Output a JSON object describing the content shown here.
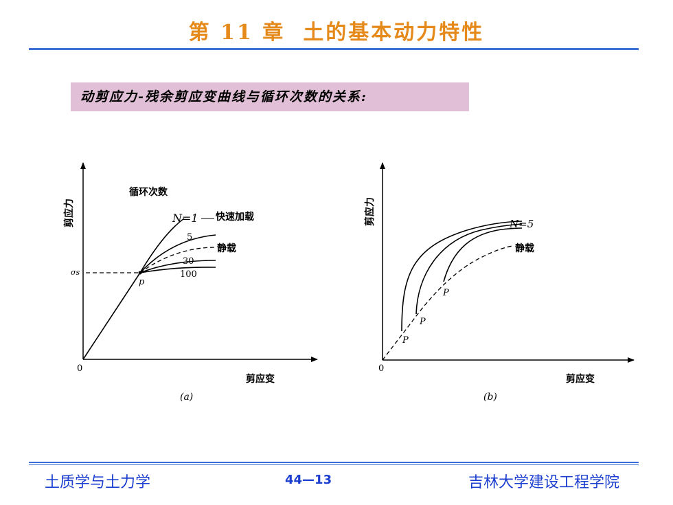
{
  "header": {
    "chapter": "第 11 章",
    "title": "土的基本动力特性"
  },
  "subtitle": "动剪应力-残余剪应变曲线与循环次数的关系:",
  "figure_a": {
    "y_axis_label": "剪应力",
    "x_axis_label": "剪应变",
    "origin": "0",
    "legend_title": "循环次数",
    "n1_label": "N=1",
    "n1_note": "快速加载",
    "label_5": "5",
    "static_label": "静载",
    "label_30": "30",
    "label_100": "100",
    "sigma_label": "σs",
    "point_label": "p",
    "caption": "(a)"
  },
  "figure_b": {
    "y_axis_label": "剪应力",
    "x_axis_label": "剪应变",
    "origin": "0",
    "n_label": "N=5",
    "static_label": "静载",
    "point_label": "P",
    "caption": "(b)"
  },
  "footer": {
    "left": "土质学与土力学",
    "page": "44—13",
    "right": "吉林大学建设工程学院"
  },
  "colors": {
    "title": "#e58a1a",
    "rule": "#3b6fd6",
    "subtitle_bg": "#e1bfd6",
    "footer_text": "#1c3fd0"
  }
}
